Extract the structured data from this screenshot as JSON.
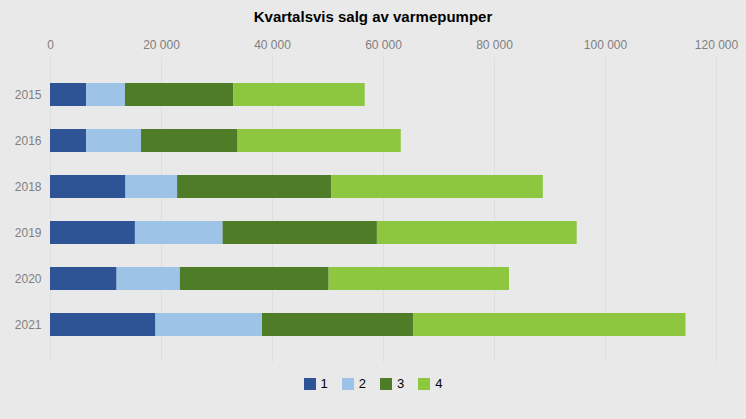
{
  "chart_data": {
    "type": "bar",
    "orientation": "horizontal",
    "stacked": true,
    "title": "Kvartalsvis salg av varmepumper",
    "categories": [
      "2015",
      "2016",
      "2018",
      "2019",
      "2020",
      "2021"
    ],
    "series": [
      {
        "name": "1",
        "color": "#2e5496",
        "values": [
          6500,
          6500,
          13600,
          15300,
          12000,
          19000
        ]
      },
      {
        "name": "2",
        "color": "#9dc3e6",
        "values": [
          7000,
          9900,
          9300,
          15800,
          11400,
          19200
        ]
      },
      {
        "name": "3",
        "color": "#4e7c27",
        "values": [
          19500,
          17400,
          27800,
          27800,
          26800,
          27200
        ]
      },
      {
        "name": "4",
        "color": "#8dc63f",
        "values": [
          23700,
          29400,
          38100,
          36000,
          32500,
          49100
        ]
      }
    ],
    "xlim": [
      0,
      120000
    ],
    "xticks": [
      0,
      {
        "value": 20000,
        "label": "20 000"
      },
      {
        "value": 40000,
        "label": "40 000"
      },
      {
        "value": 60000,
        "label": "60 000"
      },
      {
        "value": 80000,
        "label": "80 000"
      },
      {
        "value": 100000,
        "label": "100 000"
      },
      {
        "value": 120000,
        "label": "120 000"
      }
    ],
    "grid": true,
    "legend": "bottom"
  }
}
